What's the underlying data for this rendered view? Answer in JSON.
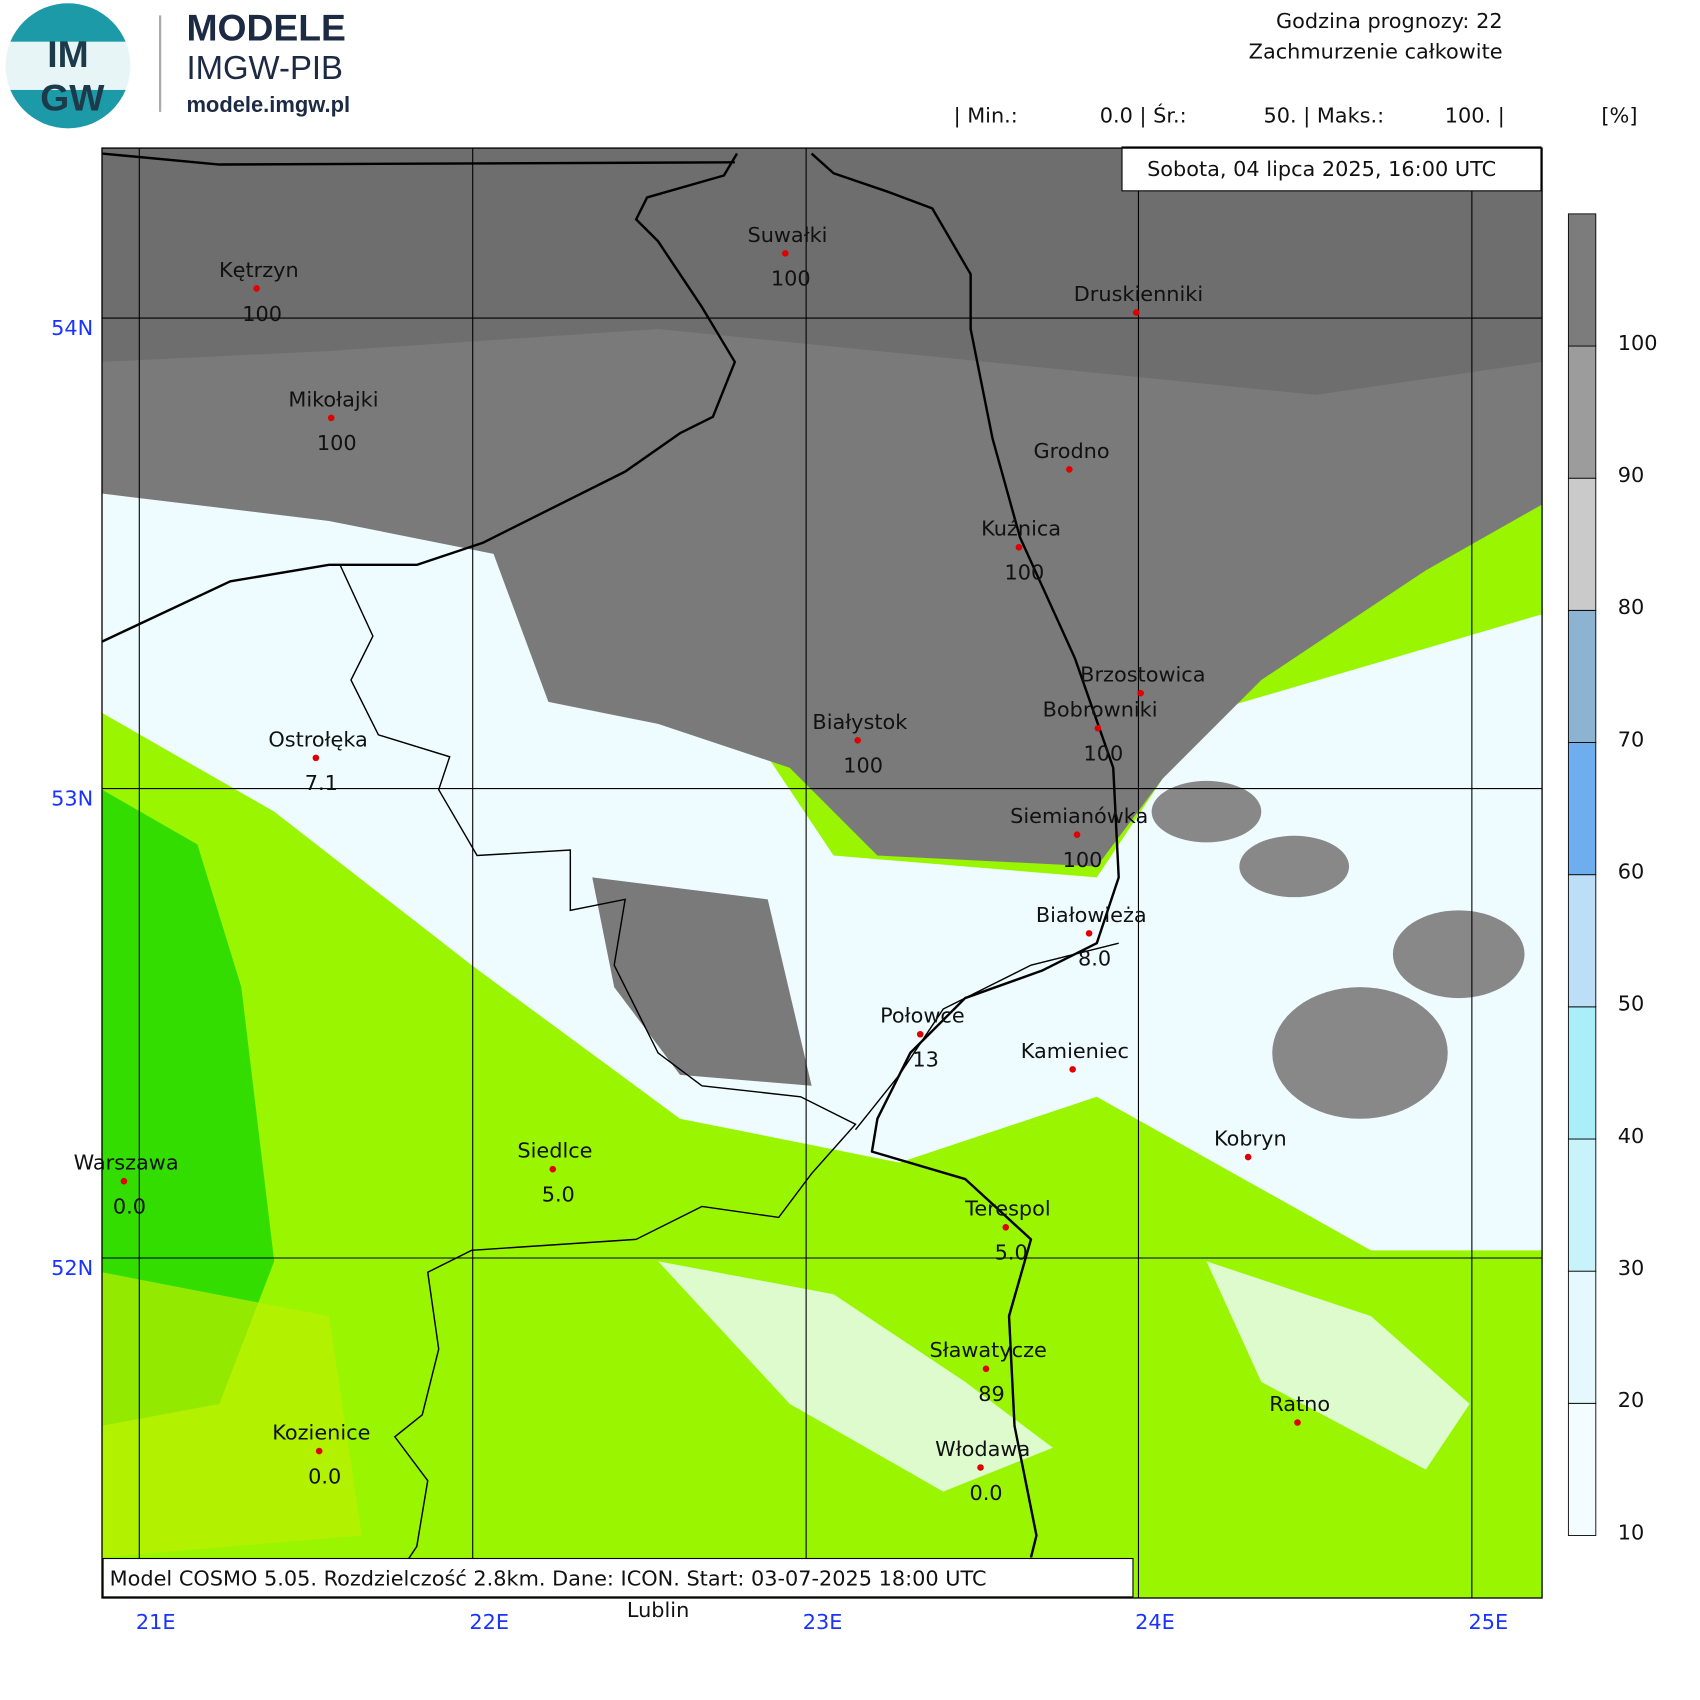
{
  "header": {
    "logo_top": "IM",
    "logo_bottom": "GW",
    "brand": "MODELE",
    "brand_sub": "IMGW-PIB",
    "url": "modele.imgw.pl",
    "forecast_hour": "Godzina prognozy: 22",
    "field": "Zachmurzenie całkowite",
    "stats": [
      "| Min.:",
      "0.0 | Śr.:",
      "50. | Maks.:",
      "100. |",
      "[%]"
    ]
  },
  "map": {
    "date": "Sobota, 04 lipca 2025, 16:00 UTC",
    "footer": "Model COSMO 5.05. Rozdzielczość 2.8km. Dane: ICON. Start: 03-07-2025 18:00 UTC",
    "outside_label": "Lublin",
    "lat_labels": [
      "54N",
      "53N",
      "52N"
    ],
    "lon_labels": [
      "21E",
      "22E",
      "23E",
      "24E",
      "25E"
    ],
    "cities": [
      {
        "name": "Kętrzyn",
        "value": "100"
      },
      {
        "name": "Suwałki",
        "value": "100"
      },
      {
        "name": "Druskienniki"
      },
      {
        "name": "Mikołajki",
        "value": "100"
      },
      {
        "name": "Grodno"
      },
      {
        "name": "Kuźnica",
        "value": "100"
      },
      {
        "name": "Brzostowica"
      },
      {
        "name": "Bobrowniki",
        "value": "100"
      },
      {
        "name": "Białystok",
        "value": "100"
      },
      {
        "name": "Ostrołęka",
        "value": "7.1"
      },
      {
        "name": "Siemianówka",
        "value": "100"
      },
      {
        "name": "Białowieża",
        "value": "8.0"
      },
      {
        "name": "Połowce",
        "value": "13"
      },
      {
        "name": "Kamieniec"
      },
      {
        "name": "Kobryn"
      },
      {
        "name": "Warszawa",
        "value": "0.0"
      },
      {
        "name": "Siedlce",
        "value": "5.0"
      },
      {
        "name": "Terespol",
        "value": "5.0"
      },
      {
        "name": "Sławatycze",
        "value": "89"
      },
      {
        "name": "Ratno"
      },
      {
        "name": "Kozienice",
        "value": "0.0"
      },
      {
        "name": "Włodawa",
        "value": "0.0"
      }
    ]
  },
  "colorbar": {
    "lim": [
      10,
      110
    ],
    "ticks": [
      10,
      20,
      30,
      40,
      50,
      60,
      70,
      80,
      90,
      100
    ],
    "colors": [
      "#f3fcff",
      "#e4f8fd",
      "#c9f3fa",
      "#aaeefa",
      "#bcdff7",
      "#6eaeee",
      "#8db3d2",
      "#cacaca",
      "#9c9c9c",
      "#7c7c7c"
    ]
  }
}
